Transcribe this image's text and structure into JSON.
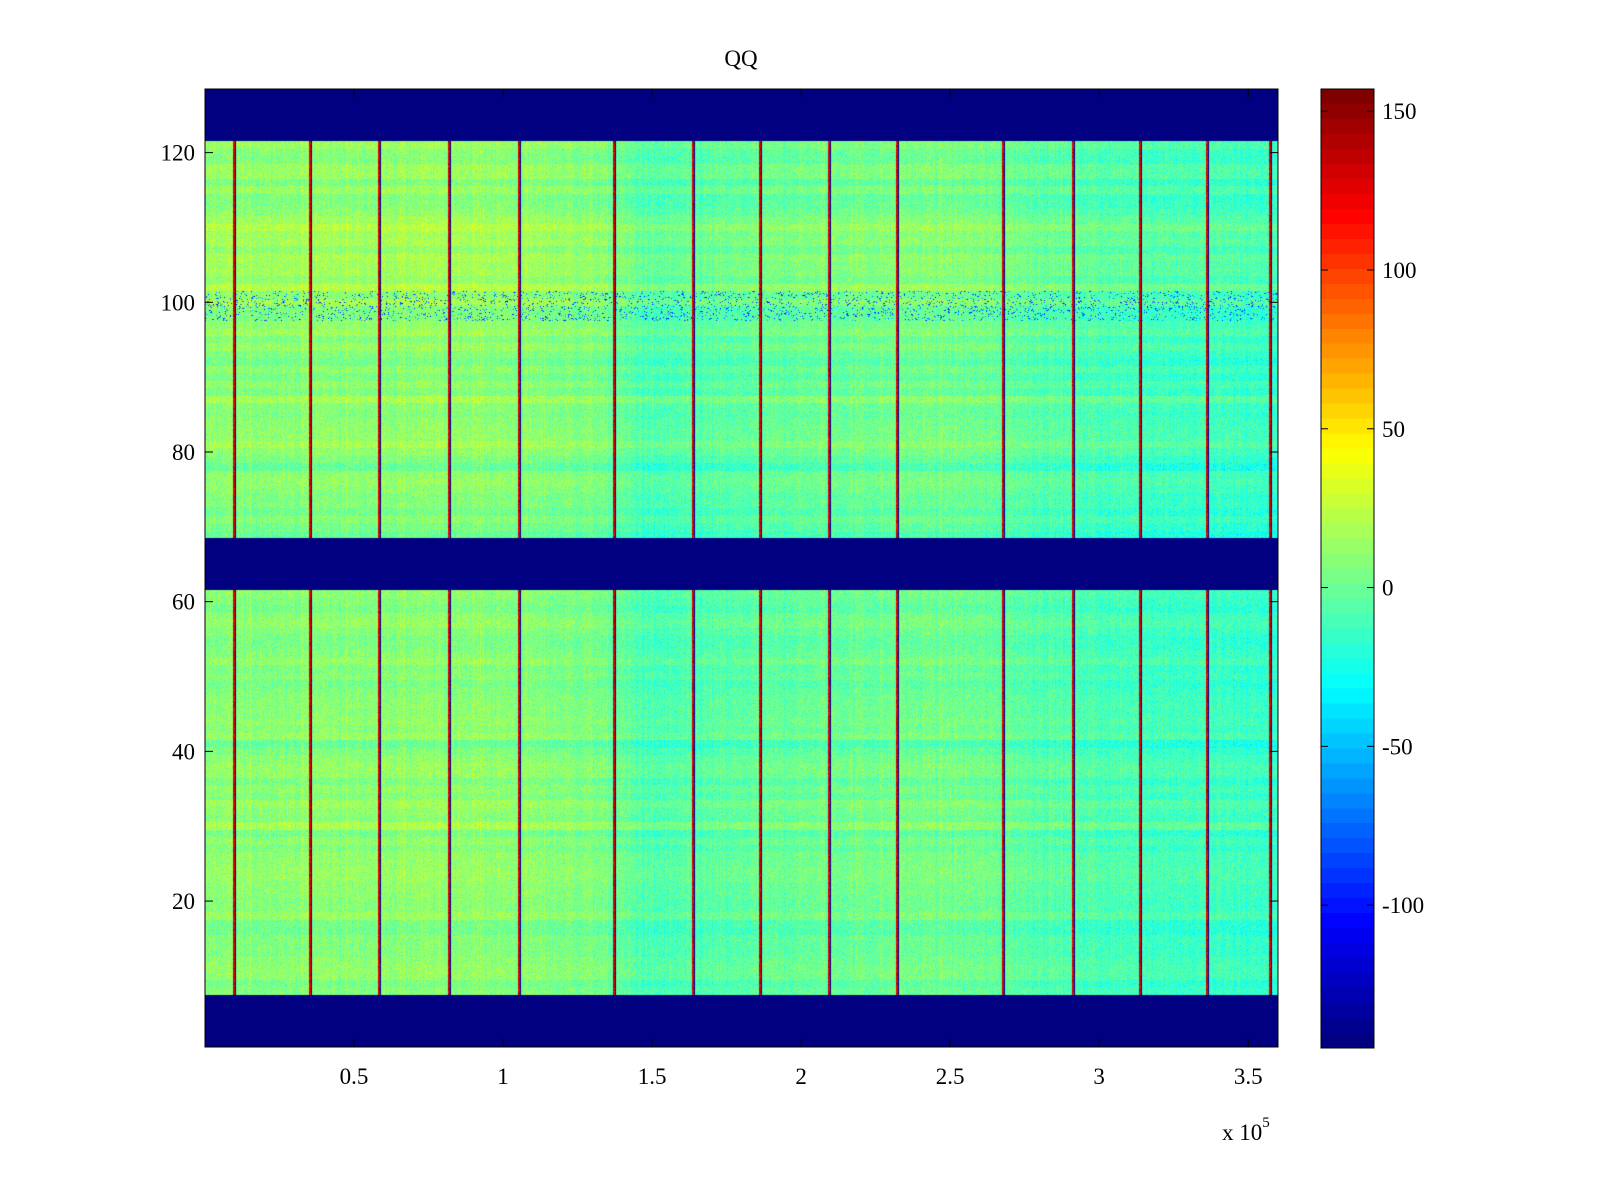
{
  "chart_data": {
    "type": "heatmap",
    "title": "QQ",
    "xlabel": "",
    "ylabel": "",
    "x_exponent_label": "x 10",
    "x_exponent_power": "5",
    "xlim": [
      0,
      360000
    ],
    "ylim": [
      0.5,
      128.5
    ],
    "x_ticks": [
      0.5,
      1,
      1.5,
      2,
      2.5,
      3,
      3.5
    ],
    "x_tick_labels": [
      "0.5",
      "1",
      "1.5",
      "2",
      "2.5",
      "3",
      "3.5"
    ],
    "y_ticks": [
      20,
      40,
      60,
      80,
      100,
      120
    ],
    "y_tick_labels": [
      "20",
      "40",
      "60",
      "80",
      "100",
      "120"
    ],
    "colormap": "jet",
    "clim": [
      -145,
      157
    ],
    "colorbar_ticks": [
      150,
      100,
      50,
      0,
      -50,
      -100
    ],
    "colorbar_tick_labels": [
      "150",
      "100",
      "50",
      "0",
      "-50",
      "-100"
    ],
    "background_value": -145,
    "empty_row_bands": [
      [
        1,
        7
      ],
      [
        62,
        68
      ],
      [
        122,
        128
      ]
    ],
    "noisy_band_rows": [
      98,
      101
    ],
    "vertical_line_x": [
      9500,
      35000,
      58000,
      81500,
      105000,
      137000,
      163500,
      186000,
      209000,
      232000,
      267500,
      291000,
      313500,
      336000,
      357000
    ],
    "column_profile": [
      {
        "x": 0,
        "bias": 8
      },
      {
        "x": 90000,
        "bias": 10
      },
      {
        "x": 130000,
        "bias": 5
      },
      {
        "x": 150000,
        "bias": -10
      },
      {
        "x": 210000,
        "bias": 0
      },
      {
        "x": 250000,
        "bias": 2
      },
      {
        "x": 300000,
        "bias": -10
      },
      {
        "x": 360000,
        "bias": -16
      }
    ],
    "row_profile": [
      {
        "y": 8,
        "bias": 0
      },
      {
        "y": 40,
        "bias": 2
      },
      {
        "y": 61,
        "bias": -4
      },
      {
        "y": 69,
        "bias": -4
      },
      {
        "y": 95,
        "bias": 4
      },
      {
        "y": 104,
        "bias": 8
      },
      {
        "y": 121,
        "bias": 0
      }
    ]
  }
}
